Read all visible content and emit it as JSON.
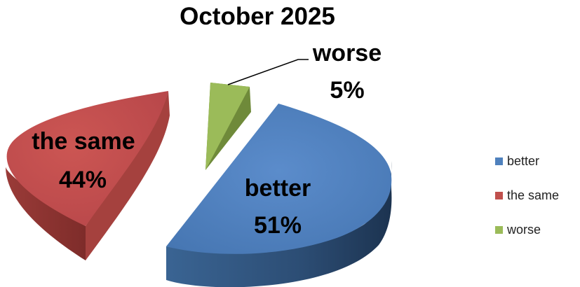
{
  "chart_data": {
    "type": "pie",
    "title": "October 2025",
    "categories": [
      "better",
      "the same",
      "worse"
    ],
    "values": [
      51,
      44,
      5
    ],
    "labels": {
      "better": {
        "name": "better",
        "percent": "51%"
      },
      "the_same": {
        "name": "the same",
        "percent": "44%"
      },
      "worse": {
        "name": "worse",
        "percent": "5%"
      }
    },
    "legend_placement": "right",
    "style": "3d-exploded",
    "colors": {
      "better": "#4f81bd",
      "the_same": "#c0504d",
      "worse": "#9bbb59"
    }
  },
  "legend": [
    {
      "label": "better",
      "color": "#4f81bd"
    },
    {
      "label": "the same",
      "color": "#c0504d"
    },
    {
      "label": "worse",
      "color": "#9bbb59"
    }
  ]
}
